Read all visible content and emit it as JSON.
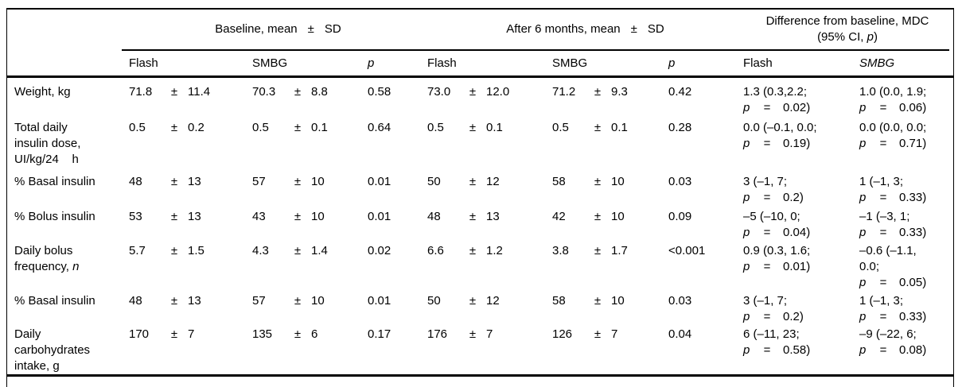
{
  "symbols": {
    "pm": "±",
    "p": "p",
    "eq": "="
  },
  "header": {
    "groups": [
      {
        "pre": "Baseline, mean",
        "post": "SD"
      },
      {
        "pre": "After 6 months, mean",
        "post": "SD"
      },
      {
        "line1": "Difference from baseline, MDC",
        "line2_pre": "(95% CI, ",
        "line2_p": "p",
        "line2_post": ")"
      }
    ],
    "cols": [
      {
        "label": "Flash"
      },
      {
        "label": "SMBG"
      },
      {
        "label": "p"
      },
      {
        "label": "Flash"
      },
      {
        "label": "SMBG"
      },
      {
        "label": "p"
      },
      {
        "label": "Flash"
      },
      {
        "label": "SMBG"
      }
    ]
  },
  "rows": [
    {
      "label": "Weight, kg",
      "label_italic": "",
      "baseline": {
        "flash": {
          "mean": "71.8",
          "sd": "11.4"
        },
        "smbg": {
          "mean": "70.3",
          "sd": "8.8"
        },
        "p": "0.58"
      },
      "after": {
        "flash": {
          "mean": "73.0",
          "sd": "12.0"
        },
        "smbg": {
          "mean": "71.2",
          "sd": "9.3"
        },
        "p": "0.42"
      },
      "diff": {
        "flash": {
          "ci": "1.3 (0.3,2.2;",
          "p": "0.02)"
        },
        "smbg": {
          "ci": "1.0 (0.0, 1.9;",
          "p": "0.06)"
        }
      }
    },
    {
      "label": "Total daily insulin dose, UI/kg/24    h",
      "label_italic": "",
      "baseline": {
        "flash": {
          "mean": "0.5",
          "sd": "0.2"
        },
        "smbg": {
          "mean": "0.5",
          "sd": "0.1"
        },
        "p": "0.64"
      },
      "after": {
        "flash": {
          "mean": "0.5",
          "sd": "0.1"
        },
        "smbg": {
          "mean": "0.5",
          "sd": "0.1"
        },
        "p": "0.28"
      },
      "diff": {
        "flash": {
          "ci": "0.0 (–0.1, 0.0;",
          "p": "0.19)"
        },
        "smbg": {
          "ci": "0.0 (0.0, 0.0;",
          "p": "0.71)"
        }
      }
    },
    {
      "label": "% Basal insulin",
      "label_italic": "",
      "baseline": {
        "flash": {
          "mean": "48",
          "sd": "13"
        },
        "smbg": {
          "mean": "57",
          "sd": "10"
        },
        "p": "0.01"
      },
      "after": {
        "flash": {
          "mean": "50",
          "sd": "12"
        },
        "smbg": {
          "mean": "58",
          "sd": "10"
        },
        "p": "0.03"
      },
      "diff": {
        "flash": {
          "ci": "3 (–1, 7;",
          "p": "0.2)"
        },
        "smbg": {
          "ci": "1 (–1, 3;",
          "p": "0.33)"
        }
      }
    },
    {
      "label": "% Bolus insulin",
      "label_italic": "",
      "baseline": {
        "flash": {
          "mean": "53",
          "sd": "13"
        },
        "smbg": {
          "mean": "43",
          "sd": "10"
        },
        "p": "0.01"
      },
      "after": {
        "flash": {
          "mean": "48",
          "sd": "13"
        },
        "smbg": {
          "mean": "42",
          "sd": "10"
        },
        "p": "0.09"
      },
      "diff": {
        "flash": {
          "ci": "–5 (–10, 0;",
          "p": "0.04)"
        },
        "smbg": {
          "ci": "–1 (–3, 1;",
          "p": "0.33)"
        }
      }
    },
    {
      "label": "Daily bolus frequency, ",
      "label_italic": "n",
      "baseline": {
        "flash": {
          "mean": "5.7",
          "sd": "1.5"
        },
        "smbg": {
          "mean": "4.3",
          "sd": "1.4"
        },
        "p": "0.02"
      },
      "after": {
        "flash": {
          "mean": "6.6",
          "sd": "1.2"
        },
        "smbg": {
          "mean": "3.8",
          "sd": "1.7"
        },
        "p": "<0.001"
      },
      "diff": {
        "flash": {
          "ci": "0.9 (0.3, 1.6;",
          "p": "0.01)"
        },
        "smbg": {
          "ci": "–0.6 (–1.1,\n0.0;",
          "p": "0.05)"
        }
      }
    },
    {
      "label": "% Basal insulin",
      "label_italic": "",
      "baseline": {
        "flash": {
          "mean": "48",
          "sd": "13"
        },
        "smbg": {
          "mean": "57",
          "sd": "10"
        },
        "p": "0.01"
      },
      "after": {
        "flash": {
          "mean": "50",
          "sd": "12"
        },
        "smbg": {
          "mean": "58",
          "sd": "10"
        },
        "p": "0.03"
      },
      "diff": {
        "flash": {
          "ci": "3 (–1, 7;",
          "p": "0.2)"
        },
        "smbg": {
          "ci": "1 (–1, 3;",
          "p": "0.33)"
        }
      }
    },
    {
      "label": "Daily carbohydrates intake, g",
      "label_italic": "",
      "baseline": {
        "flash": {
          "mean": "170",
          "sd": "7"
        },
        "smbg": {
          "mean": "135",
          "sd": "6"
        },
        "p": "0.17"
      },
      "after": {
        "flash": {
          "mean": "176",
          "sd": "7"
        },
        "smbg": {
          "mean": "126",
          "sd": "7"
        },
        "p": "0.04"
      },
      "diff": {
        "flash": {
          "ci": "6 (–11, 23;",
          "p": "0.58)"
        },
        "smbg": {
          "ci": "–9 (–22, 6;",
          "p": "0.08)"
        }
      }
    }
  ]
}
